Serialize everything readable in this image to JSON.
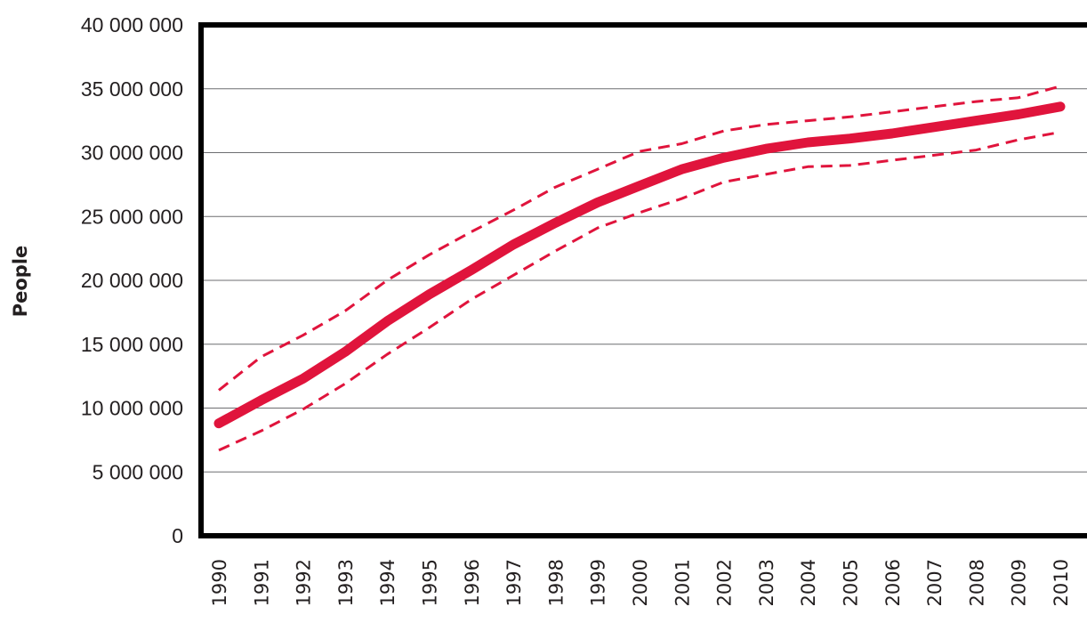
{
  "chart_data": {
    "type": "line",
    "title": "",
    "xlabel": "",
    "ylabel": "People",
    "x": [
      "1990",
      "1991",
      "1992",
      "1993",
      "1994",
      "1995",
      "1996",
      "1997",
      "1998",
      "1999",
      "2000",
      "2001",
      "2002",
      "2003",
      "2004",
      "2005",
      "2006",
      "2007",
      "2008",
      "2009",
      "2010"
    ],
    "ylim": [
      0,
      40000000
    ],
    "yticks": [
      0,
      5000000,
      10000000,
      15000000,
      20000000,
      25000000,
      30000000,
      35000000,
      40000000
    ],
    "ytick_labels": [
      "0",
      "5 000 000",
      "10 000 000",
      "15 000 000",
      "20 000 000",
      "25 000 000",
      "30 000 000",
      "35 000 000",
      "40 000 000"
    ],
    "grid": "horizontal",
    "legend": "none",
    "series": [
      {
        "role": "estimate",
        "style": "solid-thick",
        "color": "#e0143c",
        "values": [
          8800000,
          10600000,
          12300000,
          14400000,
          16800000,
          18900000,
          20800000,
          22800000,
          24500000,
          26100000,
          27400000,
          28700000,
          29600000,
          30300000,
          30800000,
          31100000,
          31500000,
          32000000,
          32500000,
          33000000,
          33600000
        ]
      },
      {
        "role": "upper-bound",
        "style": "dashed",
        "color": "#e0143c",
        "values": [
          11400000,
          14000000,
          15700000,
          17600000,
          20000000,
          22000000,
          23800000,
          25500000,
          27300000,
          28700000,
          30100000,
          30700000,
          31700000,
          32200000,
          32500000,
          32800000,
          33200000,
          33600000,
          34000000,
          34300000,
          35200000
        ]
      },
      {
        "role": "lower-bound",
        "style": "dashed",
        "color": "#e0143c",
        "values": [
          6700000,
          8200000,
          9900000,
          11900000,
          14200000,
          16300000,
          18500000,
          20400000,
          22300000,
          24100000,
          25300000,
          26400000,
          27700000,
          28300000,
          28900000,
          29000000,
          29400000,
          29800000,
          30200000,
          31000000,
          31600000
        ]
      }
    ]
  }
}
